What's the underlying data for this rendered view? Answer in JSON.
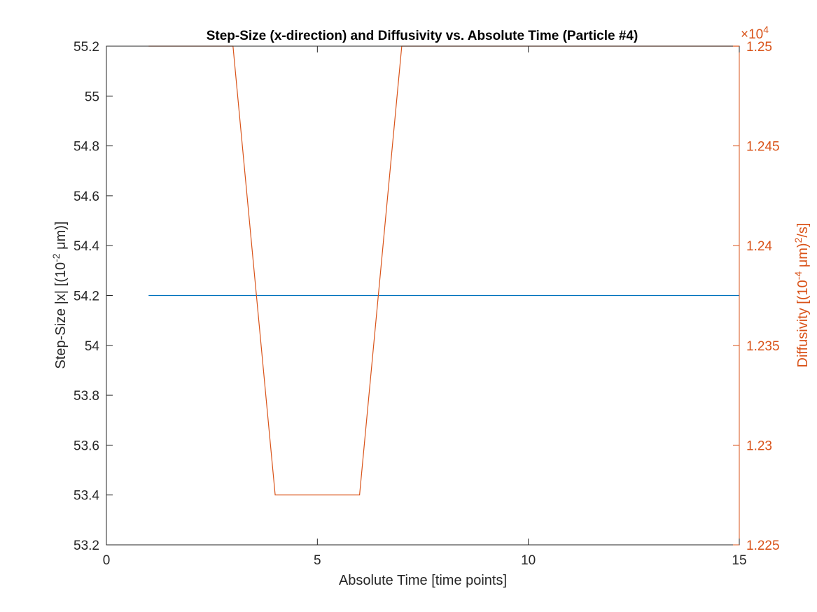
{
  "chart_data": {
    "type": "line",
    "title": "Step-Size (x-direction) and Diffusivity vs. Absolute Time (Particle #4)",
    "xlabel": "Absolute Time [time points]",
    "ylabel_left": "Step-Size |x| [(10^-2 μm)]",
    "ylabel_right": "Diffusivity [(10^-4 μm)^2/s]",
    "right_axis_exponent": "×10^4",
    "xlim": [
      0,
      15
    ],
    "ylim_left": [
      53.2,
      55.2
    ],
    "ylim_right": [
      12250,
      12500
    ],
    "x_ticks": [
      0,
      5,
      10,
      15
    ],
    "x_tick_labels": [
      "0",
      "5",
      "10",
      "15"
    ],
    "y_left_ticks": [
      53.2,
      53.4,
      53.6,
      53.8,
      54.0,
      54.2,
      54.4,
      54.6,
      54.8,
      55.0,
      55.2
    ],
    "y_left_tick_labels": [
      "53.2",
      "53.4",
      "53.6",
      "53.8",
      "54",
      "54.2",
      "54.4",
      "54.6",
      "54.8",
      "55",
      "55.2"
    ],
    "y_right_ticks": [
      12250,
      12300,
      12350,
      12400,
      12450,
      12500
    ],
    "y_right_tick_labels": [
      "1.225",
      "1.23",
      "1.235",
      "1.24",
      "1.245",
      "1.25"
    ],
    "grid": false,
    "legend": "none",
    "series": [
      {
        "axis": "left",
        "color": "#0072BD",
        "x": [
          1,
          2,
          3,
          4,
          5,
          6,
          7,
          8,
          9,
          10,
          11,
          12,
          13,
          14,
          15
        ],
        "y": [
          54.2,
          54.2,
          54.2,
          54.2,
          54.2,
          54.2,
          54.2,
          54.2,
          54.2,
          54.2,
          54.2,
          54.2,
          54.2,
          54.2,
          54.2
        ]
      },
      {
        "axis": "right",
        "color": "#D95319",
        "x": [
          1,
          2,
          3,
          4,
          5,
          6,
          7,
          8,
          9,
          10,
          11,
          12,
          13,
          14,
          15
        ],
        "y": [
          12500,
          12500,
          12500,
          12275,
          12275,
          12275,
          12500,
          12500,
          12500,
          12500,
          12500,
          12500,
          12500,
          12500,
          12500
        ]
      }
    ],
    "colors": {
      "left_axis": "#262626",
      "right_axis": "#D95319"
    }
  }
}
